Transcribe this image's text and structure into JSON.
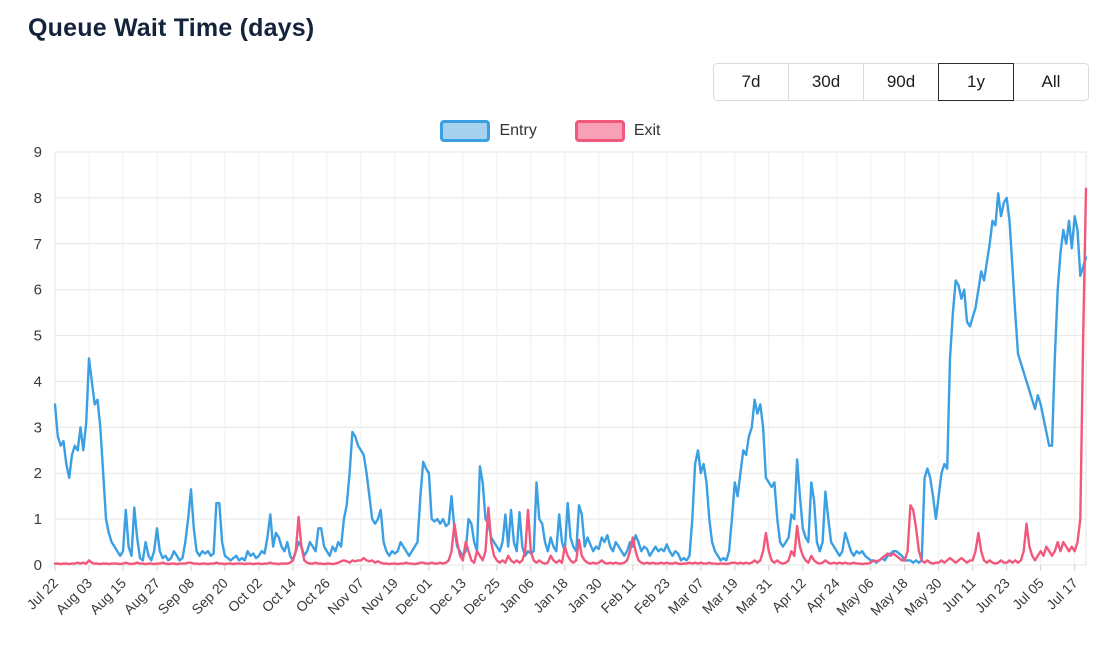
{
  "title": "Queue Wait Time (days)",
  "range_selector": {
    "options": [
      "7d",
      "30d",
      "90d",
      "1y",
      "All"
    ],
    "selected": "1y"
  },
  "legend": [
    {
      "label": "Entry",
      "line_color": "#3b9fe3",
      "fill_color": "#a6d2f0"
    },
    {
      "label": "Exit",
      "line_color": "#f2587b",
      "fill_color": "#f8a0b5"
    }
  ],
  "chart_data": {
    "type": "line",
    "title": "Queue Wait Time (days)",
    "xlabel": "",
    "ylabel": "",
    "ylim": [
      0,
      9
    ],
    "y_ticks": [
      0,
      1,
      2,
      3,
      4,
      5,
      6,
      7,
      8,
      9
    ],
    "grid": true,
    "legend_position": "top",
    "x_unit": "day_index_from_first_label",
    "x_tick_days": [
      0,
      12,
      24,
      36,
      48,
      60,
      72,
      84,
      96,
      108,
      120,
      132,
      144,
      156,
      168,
      180,
      192,
      204,
      216,
      228,
      240,
      252,
      264,
      276,
      288,
      300,
      312,
      324,
      336,
      348,
      360
    ],
    "x_tick_labels": [
      "Jul 22",
      "Aug 03",
      "Aug 15",
      "Aug 27",
      "Sep 08",
      "Sep 20",
      "Oct 02",
      "Oct 14",
      "Oct 26",
      "Nov 07",
      "Nov 19",
      "Dec 01",
      "Dec 13",
      "Dec 25",
      "Jan 06",
      "Jan 18",
      "Jan 30",
      "Feb 11",
      "Feb 23",
      "Mar 07",
      "Mar 19",
      "Mar 31",
      "Apr 12",
      "Apr 24",
      "May 06",
      "May 18",
      "May 30",
      "Jun 11",
      "Jun 23",
      "Jul 05",
      "Jul 17"
    ],
    "series": [
      {
        "name": "Entry",
        "color": "#3b9fe3",
        "values": [
          3.5,
          2.8,
          2.6,
          2.7,
          2.2,
          1.9,
          2.4,
          2.6,
          2.5,
          3.0,
          2.5,
          3.1,
          4.5,
          4.0,
          3.5,
          3.6,
          3.0,
          2.0,
          1.0,
          0.7,
          0.5,
          0.4,
          0.3,
          0.2,
          0.3,
          1.2,
          0.4,
          0.2,
          1.25,
          0.6,
          0.15,
          0.1,
          0.5,
          0.2,
          0.1,
          0.3,
          0.8,
          0.3,
          0.15,
          0.2,
          0.1,
          0.15,
          0.3,
          0.2,
          0.1,
          0.15,
          0.5,
          1.0,
          1.65,
          0.8,
          0.3,
          0.2,
          0.3,
          0.25,
          0.3,
          0.2,
          0.25,
          1.35,
          1.35,
          0.5,
          0.2,
          0.15,
          0.1,
          0.15,
          0.2,
          0.1,
          0.15,
          0.1,
          0.3,
          0.2,
          0.25,
          0.15,
          0.2,
          0.3,
          0.25,
          0.6,
          1.1,
          0.4,
          0.7,
          0.6,
          0.4,
          0.3,
          0.5,
          0.2,
          0.1,
          0.3,
          0.5,
          0.4,
          0.2,
          0.3,
          0.5,
          0.4,
          0.3,
          0.8,
          0.8,
          0.4,
          0.3,
          0.2,
          0.4,
          0.3,
          0.5,
          0.4,
          1.0,
          1.3,
          2.0,
          2.9,
          2.8,
          2.6,
          2.5,
          2.4,
          2.0,
          1.5,
          1.0,
          0.9,
          1.0,
          1.2,
          0.5,
          0.3,
          0.2,
          0.3,
          0.25,
          0.3,
          0.5,
          0.4,
          0.3,
          0.2,
          0.3,
          0.4,
          0.5,
          1.5,
          2.25,
          2.1,
          2.0,
          1.0,
          0.95,
          1.0,
          0.9,
          1.0,
          0.85,
          0.9,
          1.5,
          0.8,
          0.4,
          0.3,
          0.2,
          0.3,
          1.0,
          0.9,
          0.5,
          0.3,
          2.15,
          1.8,
          1.0,
          0.9,
          0.6,
          0.5,
          0.4,
          0.3,
          0.5,
          1.1,
          0.4,
          1.2,
          0.5,
          0.3,
          1.15,
          0.4,
          0.2,
          0.3,
          0.25,
          0.3,
          1.8,
          1.0,
          0.9,
          0.5,
          0.3,
          0.6,
          0.4,
          0.3,
          1.1,
          0.5,
          0.3,
          1.35,
          0.6,
          0.4,
          0.3,
          1.3,
          1.1,
          0.4,
          0.6,
          0.45,
          0.3,
          0.4,
          0.35,
          0.6,
          0.5,
          0.65,
          0.4,
          0.3,
          0.5,
          0.4,
          0.3,
          0.2,
          0.3,
          0.5,
          0.4,
          0.65,
          0.5,
          0.3,
          0.4,
          0.35,
          0.2,
          0.3,
          0.4,
          0.3,
          0.35,
          0.3,
          0.45,
          0.3,
          0.2,
          0.3,
          0.25,
          0.1,
          0.15,
          0.1,
          0.2,
          1.0,
          2.2,
          2.5,
          2.0,
          2.2,
          1.8,
          1.0,
          0.5,
          0.3,
          0.2,
          0.1,
          0.15,
          0.1,
          0.3,
          1.0,
          1.8,
          1.5,
          2.0,
          2.5,
          2.4,
          2.8,
          3.0,
          3.6,
          3.3,
          3.5,
          3.0,
          1.9,
          1.8,
          1.7,
          1.8,
          1.0,
          0.5,
          0.4,
          0.5,
          0.6,
          1.1,
          1.0,
          2.3,
          1.5,
          0.8,
          0.6,
          0.5,
          1.8,
          1.4,
          0.5,
          0.3,
          0.5,
          1.6,
          1.0,
          0.5,
          0.4,
          0.3,
          0.2,
          0.3,
          0.7,
          0.5,
          0.3,
          0.2,
          0.3,
          0.25,
          0.3,
          0.2,
          0.15,
          0.1,
          0.1,
          0.05,
          0.1,
          0.15,
          0.1,
          0.2,
          0.25,
          0.3,
          0.3,
          0.25,
          0.2,
          0.1,
          0.1,
          0.1,
          0.05,
          0.1,
          0.05,
          0.1,
          1.9,
          2.1,
          1.9,
          1.5,
          1.0,
          1.5,
          2.0,
          2.2,
          2.1,
          4.5,
          5.5,
          6.2,
          6.1,
          5.8,
          6.0,
          5.3,
          5.2,
          5.4,
          5.6,
          6.0,
          6.4,
          6.2,
          6.6,
          7.0,
          7.5,
          7.4,
          8.1,
          7.6,
          7.9,
          8.0,
          7.5,
          6.5,
          5.5,
          4.6,
          4.4,
          4.2,
          4.0,
          3.8,
          3.6,
          3.4,
          3.7,
          3.5,
          3.2,
          2.9,
          2.6,
          2.6,
          4.5,
          6.0,
          6.8,
          7.3,
          7.0,
          7.5,
          6.9,
          7.6,
          7.3,
          6.3,
          6.5,
          6.7
        ]
      },
      {
        "name": "Exit",
        "color": "#f2587b",
        "values": [
          0.03,
          0.03,
          0.02,
          0.03,
          0.03,
          0.02,
          0.03,
          0.03,
          0.05,
          0.03,
          0.05,
          0.03,
          0.1,
          0.05,
          0.03,
          0.03,
          0.02,
          0.03,
          0.03,
          0.02,
          0.03,
          0.03,
          0.03,
          0.02,
          0.03,
          0.05,
          0.03,
          0.02,
          0.03,
          0.05,
          0.03,
          0.03,
          0.02,
          0.03,
          0.03,
          0.02,
          0.03,
          0.03,
          0.05,
          0.03,
          0.02,
          0.03,
          0.03,
          0.02,
          0.03,
          0.03,
          0.03,
          0.05,
          0.05,
          0.03,
          0.03,
          0.02,
          0.03,
          0.03,
          0.02,
          0.03,
          0.03,
          0.05,
          0.03,
          0.03,
          0.02,
          0.03,
          0.03,
          0.02,
          0.03,
          0.03,
          0.03,
          0.02,
          0.03,
          0.03,
          0.02,
          0.03,
          0.03,
          0.02,
          0.03,
          0.03,
          0.05,
          0.03,
          0.03,
          0.02,
          0.03,
          0.03,
          0.03,
          0.05,
          0.1,
          0.3,
          1.05,
          0.4,
          0.1,
          0.05,
          0.03,
          0.03,
          0.05,
          0.03,
          0.03,
          0.02,
          0.03,
          0.03,
          0.02,
          0.03,
          0.05,
          0.08,
          0.1,
          0.08,
          0.05,
          0.1,
          0.08,
          0.1,
          0.1,
          0.15,
          0.1,
          0.08,
          0.1,
          0.05,
          0.08,
          0.05,
          0.03,
          0.03,
          0.02,
          0.03,
          0.03,
          0.02,
          0.03,
          0.03,
          0.05,
          0.03,
          0.03,
          0.02,
          0.03,
          0.05,
          0.05,
          0.03,
          0.03,
          0.05,
          0.03,
          0.03,
          0.05,
          0.03,
          0.05,
          0.1,
          0.3,
          0.9,
          0.5,
          0.2,
          0.1,
          0.5,
          0.3,
          0.1,
          0.05,
          0.3,
          0.2,
          0.1,
          0.3,
          1.25,
          0.5,
          0.2,
          0.1,
          0.05,
          0.1,
          0.05,
          0.2,
          0.1,
          0.05,
          0.1,
          0.05,
          0.1,
          0.3,
          1.2,
          0.3,
          0.1,
          0.05,
          0.1,
          0.05,
          0.03,
          0.05,
          0.2,
          0.1,
          0.05,
          0.1,
          0.05,
          0.4,
          0.2,
          0.1,
          0.05,
          0.1,
          0.55,
          0.2,
          0.1,
          0.05,
          0.03,
          0.05,
          0.03,
          0.05,
          0.1,
          0.05,
          0.03,
          0.05,
          0.03,
          0.05,
          0.03,
          0.03,
          0.05,
          0.1,
          0.3,
          0.6,
          0.3,
          0.1,
          0.05,
          0.03,
          0.05,
          0.03,
          0.05,
          0.03,
          0.03,
          0.05,
          0.03,
          0.05,
          0.03,
          0.03,
          0.05,
          0.03,
          0.02,
          0.03,
          0.03,
          0.05,
          0.03,
          0.05,
          0.03,
          0.05,
          0.03,
          0.03,
          0.05,
          0.03,
          0.03,
          0.02,
          0.03,
          0.03,
          0.02,
          0.03,
          0.05,
          0.05,
          0.03,
          0.05,
          0.03,
          0.05,
          0.03,
          0.05,
          0.1,
          0.05,
          0.1,
          0.3,
          0.7,
          0.3,
          0.1,
          0.05,
          0.1,
          0.05,
          0.03,
          0.05,
          0.1,
          0.3,
          0.2,
          0.85,
          0.4,
          0.2,
          0.1,
          0.05,
          0.2,
          0.1,
          0.05,
          0.03,
          0.05,
          0.1,
          0.05,
          0.03,
          0.05,
          0.03,
          0.05,
          0.03,
          0.05,
          0.03,
          0.03,
          0.05,
          0.03,
          0.03,
          0.02,
          0.03,
          0.03,
          0.05,
          0.1,
          0.08,
          0.1,
          0.15,
          0.2,
          0.25,
          0.2,
          0.25,
          0.2,
          0.15,
          0.1,
          0.1,
          0.3,
          1.3,
          1.2,
          0.8,
          0.3,
          0.1,
          0.05,
          0.1,
          0.05,
          0.03,
          0.05,
          0.05,
          0.1,
          0.05,
          0.1,
          0.15,
          0.1,
          0.05,
          0.1,
          0.15,
          0.1,
          0.05,
          0.1,
          0.1,
          0.3,
          0.7,
          0.3,
          0.1,
          0.05,
          0.1,
          0.05,
          0.03,
          0.05,
          0.1,
          0.05,
          0.05,
          0.1,
          0.05,
          0.1,
          0.05,
          0.1,
          0.3,
          0.9,
          0.4,
          0.2,
          0.1,
          0.2,
          0.3,
          0.2,
          0.4,
          0.3,
          0.2,
          0.3,
          0.5,
          0.3,
          0.5,
          0.4,
          0.3,
          0.4,
          0.3,
          0.5,
          1.0,
          5.0,
          8.2
        ]
      }
    ]
  }
}
